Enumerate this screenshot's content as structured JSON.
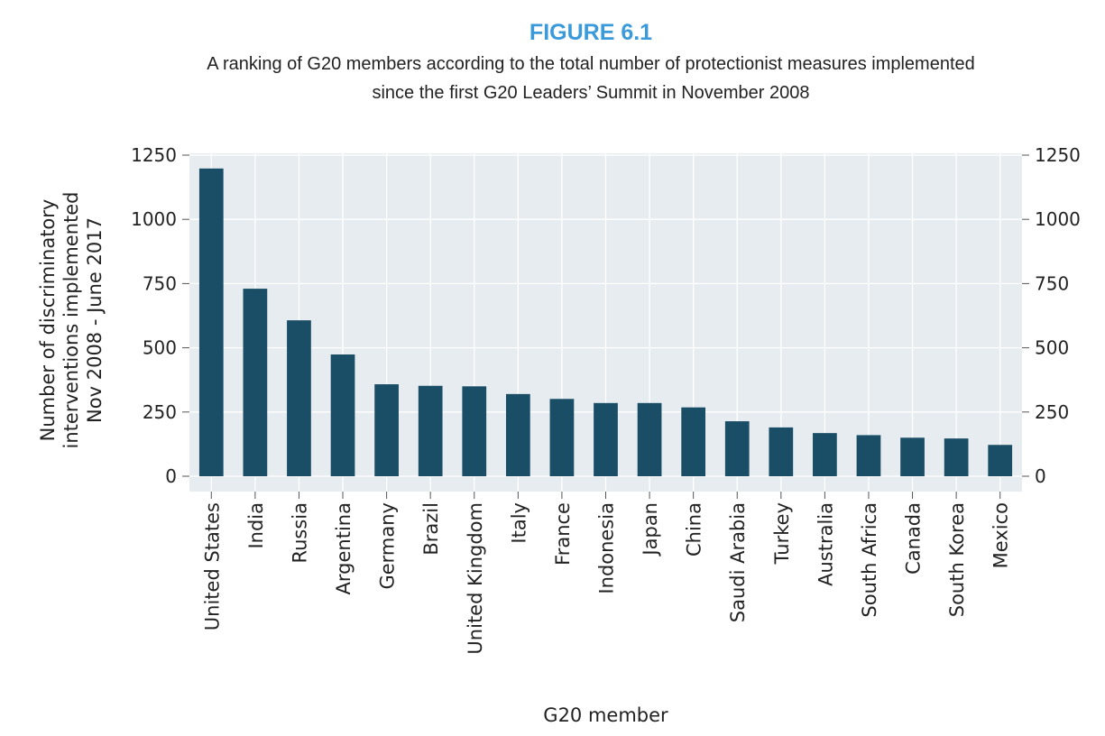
{
  "figure_label": "FIGURE 6.1",
  "subtitle_lines": [
    "A ranking of G20 members according to the total number of protectionist measures implemented",
    "since the first G20 Leaders’ Summit in November 2008"
  ],
  "chart_data": {
    "type": "bar",
    "categories": [
      "United States",
      "India",
      "Russia",
      "Argentina",
      "Germany",
      "Brazil",
      "United Kingdom",
      "Italy",
      "France",
      "Indonesia",
      "Japan",
      "China",
      "Saudi Arabia",
      "Turkey",
      "Australia",
      "South Africa",
      "Canada",
      "South Korea",
      "Mexico"
    ],
    "values": [
      1198,
      730,
      607,
      474,
      358,
      352,
      350,
      320,
      301,
      285,
      285,
      268,
      214,
      190,
      168,
      160,
      150,
      147,
      122
    ],
    "xlabel": "G20 member",
    "ylabel_lines": [
      "Number of discriminatory",
      "interventions implemented",
      "Nov 2008 - June 2017"
    ],
    "ylim": [
      0,
      1250
    ],
    "yticks": [
      0,
      250,
      500,
      750,
      1000,
      1250
    ],
    "grid": true,
    "secondary_y_axis": true,
    "colors": {
      "bar": "#1a4d66",
      "plot_bg": "#e6ecf0",
      "grid": "#ffffff",
      "figure_label": "#3b9ad9"
    }
  }
}
